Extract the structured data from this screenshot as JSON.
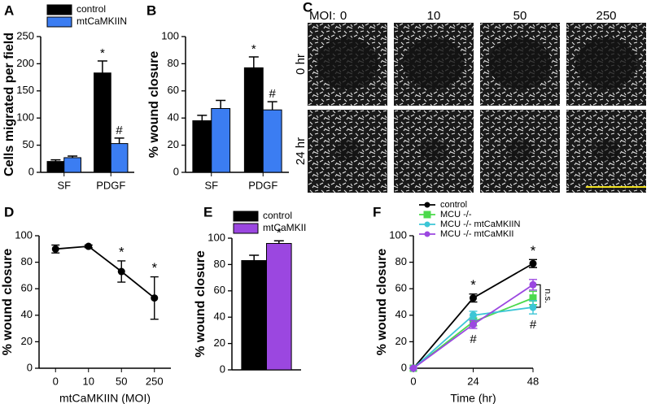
{
  "chart_data": [
    {
      "type": "bar",
      "panel": "A",
      "ylabel": "Cells migrated per field",
      "categories": [
        "SF",
        "PDGF"
      ],
      "series": [
        {
          "name": "control",
          "color": "#000000",
          "values": [
            20,
            183
          ],
          "errors": [
            3,
            22
          ],
          "notes": [
            null,
            "*"
          ]
        },
        {
          "name": "mtCaMKIIN",
          "color": "#3b7df2",
          "values": [
            27,
            53
          ],
          "errors": [
            3,
            10
          ],
          "notes": [
            null,
            "#"
          ]
        }
      ],
      "ylim": [
        0,
        250
      ],
      "yticks": [
        0,
        50,
        100,
        150,
        200,
        250
      ],
      "legend": "top"
    },
    {
      "type": "bar",
      "panel": "B",
      "ylabel": "% wound closure",
      "categories": [
        "SF",
        "PDGF"
      ],
      "series": [
        {
          "color": "#000000",
          "values": [
            38,
            77
          ],
          "errors": [
            4,
            8
          ],
          "notes": [
            null,
            "*"
          ]
        },
        {
          "color": "#3b7df2",
          "values": [
            47,
            46
          ],
          "errors": [
            6,
            6
          ],
          "notes": [
            null,
            "#"
          ]
        }
      ],
      "ylim": [
        0,
        100
      ],
      "yticks": [
        0,
        20,
        40,
        60,
        80,
        100
      ]
    },
    {
      "type": "line",
      "panel": "D",
      "ylabel": "% wound  closure",
      "xlabel": "mtCaMKIIN (MOI)",
      "categories": [
        "0",
        "10",
        "50",
        "250"
      ],
      "values": [
        90,
        92,
        73,
        53
      ],
      "errors": [
        3,
        1,
        8,
        16
      ],
      "notes": [
        null,
        null,
        "*",
        "*"
      ],
      "color": "#000000",
      "marker": "circle",
      "ylim": [
        0,
        100
      ],
      "yticks": [
        0,
        20,
        40,
        60,
        80,
        100
      ]
    },
    {
      "type": "bar",
      "panel": "E",
      "ylabel": "% wound closure",
      "categories": [
        null
      ],
      "series": [
        {
          "name": "control",
          "color": "#000000",
          "values": [
            83
          ],
          "errors": [
            4
          ]
        },
        {
          "name": "mtCaMKII",
          "color": "#9b47e0",
          "values": [
            96
          ],
          "errors": [
            2
          ],
          "notes": [
            "*"
          ]
        }
      ],
      "ylim": [
        0,
        100
      ],
      "yticks": [
        0,
        20,
        40,
        60,
        80,
        100
      ],
      "legend": "top"
    },
    {
      "type": "line",
      "panel": "F",
      "ylabel": "% wound closure",
      "xlabel": "Time (hr)",
      "x": [
        0,
        24,
        48
      ],
      "xlim": [
        0,
        48
      ],
      "xticks": [
        0,
        24,
        48
      ],
      "series": [
        {
          "name": "control",
          "color": "#000000",
          "marker": "circle",
          "values": [
            0,
            53,
            79
          ],
          "errors": [
            0,
            3,
            3
          ],
          "notes": [
            null,
            "*",
            "*"
          ]
        },
        {
          "name": "MCU -/-",
          "color": "#4cd94c",
          "marker": "square",
          "values": [
            0,
            35,
            53
          ],
          "errors": [
            0,
            3,
            5
          ]
        },
        {
          "name": "MCU -/- mtCaMKIIN",
          "color": "#3cc6d6",
          "marker": "circle",
          "values": [
            0,
            40,
            46
          ],
          "errors": [
            0,
            3,
            5
          ],
          "notes_below": [
            null,
            null,
            "#"
          ]
        },
        {
          "name": "MCU -/- mtCaMKII",
          "color": "#9b47e0",
          "marker": "circle",
          "values": [
            0,
            33,
            63
          ],
          "errors": [
            0,
            3,
            4
          ],
          "notes_below": [
            null,
            "#",
            null
          ]
        }
      ],
      "bracket_label": "n.s.",
      "ylim": [
        0,
        100
      ],
      "yticks": [
        0,
        20,
        40,
        60,
        80,
        100
      ],
      "legend": "top"
    }
  ],
  "image_panel": {
    "panel": "C",
    "moi_label": "MOI:",
    "columns": [
      "0",
      "10",
      "50",
      "250"
    ],
    "rows": [
      "0 hr",
      "24 hr"
    ]
  }
}
